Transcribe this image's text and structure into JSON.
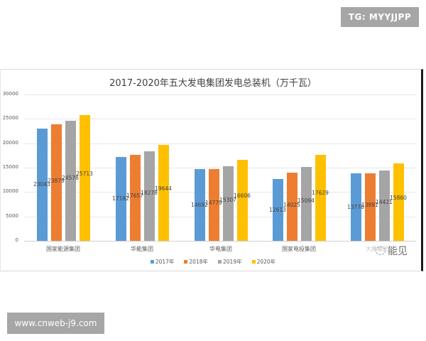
{
  "watermarks": {
    "top_right": "TG: MYYJJPP",
    "bottom_left": "www.cnweb-j9.com",
    "overlay": "能见"
  },
  "chart_data": {
    "type": "bar",
    "title": "2017-2020年五大发电集团发电总装机（万千瓦）",
    "xlabel": "",
    "ylabel": "",
    "ylim": [
      0,
      30000
    ],
    "yticks": [
      "30000",
      "25000",
      "20000",
      "15000",
      "10000",
      "5000",
      "0"
    ],
    "grid": true,
    "legend_position": "bottom",
    "categories": [
      "国家能源集团",
      "华能集团",
      "华电集团",
      "国家电投集团",
      "大唐集团"
    ],
    "series": [
      {
        "name": "2017年",
        "color": "#5b9bd5",
        "values": [
          23043,
          17182,
          14692,
          12613,
          13778
        ]
      },
      {
        "name": "2018年",
        "color": "#ed7d31",
        "values": [
          23879,
          17657,
          14779,
          14025,
          13891
        ]
      },
      {
        "name": "2019年",
        "color": "#a5a5a5",
        "values": [
          24578,
          18278,
          15307,
          15094,
          14421
        ]
      },
      {
        "name": "2020年",
        "color": "#ffc000",
        "values": [
          25713,
          19644,
          16606,
          17629,
          15860
        ]
      }
    ]
  }
}
